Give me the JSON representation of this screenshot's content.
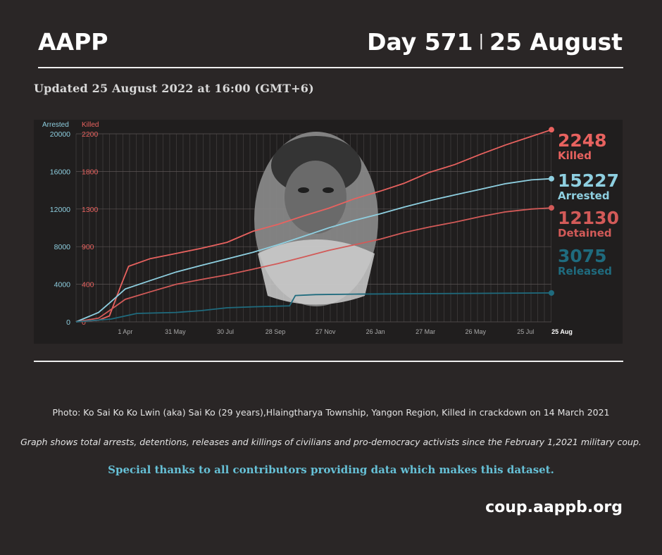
{
  "header": {
    "brand": "AAPP",
    "day": "Day 571",
    "separator": "|",
    "date": "25 August"
  },
  "updated": "Updated 25 August 2022 at 16:00 (GMT+6)",
  "chart_data": {
    "type": "line",
    "left_axis": {
      "label": "Arrested",
      "ticks": [
        0,
        4000,
        8000,
        12000,
        16000,
        20000
      ],
      "range": [
        0,
        20000
      ]
    },
    "right_axis": {
      "label": "Killed",
      "ticks": [
        0,
        400,
        900,
        1300,
        1800,
        2200
      ],
      "range": [
        0,
        2200
      ]
    },
    "x_ticks": [
      "1 Apr",
      "31 May",
      "30 Jul",
      "28 Sep",
      "27 Nov",
      "26 Jan",
      "27 Mar",
      "26 May",
      "25 Jul",
      "25 Aug"
    ],
    "x_range": [
      "2021-02-01",
      "2022-08-25"
    ],
    "grid": true,
    "series": [
      {
        "name": "Killed",
        "axis": "right",
        "color": "#e8625f",
        "final_value": 2248,
        "points": [
          [
            "2021-02-01",
            0
          ],
          [
            "2021-02-28",
            20
          ],
          [
            "2021-03-13",
            70
          ],
          [
            "2021-03-27",
            430
          ],
          [
            "2021-04-05",
            650
          ],
          [
            "2021-05-01",
            740
          ],
          [
            "2021-06-01",
            800
          ],
          [
            "2021-07-01",
            860
          ],
          [
            "2021-08-01",
            930
          ],
          [
            "2021-09-01",
            1060
          ],
          [
            "2021-10-01",
            1140
          ],
          [
            "2021-11-01",
            1240
          ],
          [
            "2021-12-01",
            1330
          ],
          [
            "2022-01-01",
            1440
          ],
          [
            "2022-02-01",
            1530
          ],
          [
            "2022-03-01",
            1620
          ],
          [
            "2022-04-01",
            1750
          ],
          [
            "2022-05-01",
            1840
          ],
          [
            "2022-06-01",
            1960
          ],
          [
            "2022-07-01",
            2070
          ],
          [
            "2022-08-01",
            2170
          ],
          [
            "2022-08-25",
            2248
          ]
        ]
      },
      {
        "name": "Arrested",
        "axis": "left",
        "color": "#8ecfe0",
        "final_value": 15227,
        "points": [
          [
            "2021-02-01",
            0
          ],
          [
            "2021-02-28",
            1000
          ],
          [
            "2021-03-13",
            2000
          ],
          [
            "2021-04-01",
            3500
          ],
          [
            "2021-05-01",
            4400
          ],
          [
            "2021-06-01",
            5300
          ],
          [
            "2021-07-01",
            6000
          ],
          [
            "2021-08-01",
            6700
          ],
          [
            "2021-09-01",
            7400
          ],
          [
            "2021-10-01",
            8200
          ],
          [
            "2021-11-01",
            9100
          ],
          [
            "2021-12-01",
            10000
          ],
          [
            "2022-01-01",
            10800
          ],
          [
            "2022-02-01",
            11500
          ],
          [
            "2022-03-01",
            12200
          ],
          [
            "2022-04-01",
            12900
          ],
          [
            "2022-05-01",
            13500
          ],
          [
            "2022-06-01",
            14100
          ],
          [
            "2022-07-01",
            14700
          ],
          [
            "2022-08-01",
            15100
          ],
          [
            "2022-08-25",
            15227
          ]
        ]
      },
      {
        "name": "Detained",
        "axis": "left",
        "color": "#d25a58",
        "final_value": 12130,
        "points": [
          [
            "2021-02-01",
            0
          ],
          [
            "2021-02-28",
            400
          ],
          [
            "2021-03-13",
            1200
          ],
          [
            "2021-04-01",
            2400
          ],
          [
            "2021-05-01",
            3200
          ],
          [
            "2021-06-01",
            4000
          ],
          [
            "2021-07-01",
            4500
          ],
          [
            "2021-08-01",
            5000
          ],
          [
            "2021-09-01",
            5600
          ],
          [
            "2021-10-01",
            6200
          ],
          [
            "2021-11-01",
            6900
          ],
          [
            "2021-12-01",
            7600
          ],
          [
            "2022-01-01",
            8200
          ],
          [
            "2022-02-01",
            8800
          ],
          [
            "2022-03-01",
            9500
          ],
          [
            "2022-04-01",
            10100
          ],
          [
            "2022-05-01",
            10600
          ],
          [
            "2022-06-01",
            11200
          ],
          [
            "2022-07-01",
            11700
          ],
          [
            "2022-08-01",
            12000
          ],
          [
            "2022-08-25",
            12130
          ]
        ]
      },
      {
        "name": "Released",
        "axis": "left",
        "color": "#1f6b7e",
        "final_value": 3075,
        "points": [
          [
            "2021-02-01",
            0
          ],
          [
            "2021-03-15",
            300
          ],
          [
            "2021-04-15",
            900
          ],
          [
            "2021-06-01",
            1000
          ],
          [
            "2021-07-01",
            1200
          ],
          [
            "2021-08-01",
            1500
          ],
          [
            "2021-09-01",
            1600
          ],
          [
            "2021-10-15",
            1700
          ],
          [
            "2021-10-22",
            2800
          ],
          [
            "2021-11-15",
            2900
          ],
          [
            "2022-01-01",
            2950
          ],
          [
            "2022-04-01",
            3000
          ],
          [
            "2022-08-25",
            3075
          ]
        ]
      }
    ]
  },
  "photo": {
    "icon": "portrait-photo"
  },
  "captions": {
    "photo": "Photo: Ko Sai Ko Ko Lwin (aka) Sai Ko (29 years),Hlaingtharya Township, Yangon Region, Killed in crackdown on 14 March 2021",
    "note": "Graph shows total arrests, detentions, releases and killings of civilians and pro-democracy activists since the February 1,2021 military coup.",
    "thanks": "Special thanks to all contributors providing data which makes this dataset."
  },
  "url": "coup.aappb.org"
}
